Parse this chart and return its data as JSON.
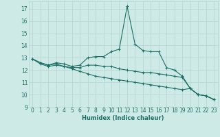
{
  "xlabel": "Humidex (Indice chaleur)",
  "background_color": "#ceeae6",
  "grid_color": "#b8d8d4",
  "line_color": "#1a6e64",
  "xlim": [
    -0.5,
    23.5
  ],
  "ylim": [
    9,
    17.6
  ],
  "yticks": [
    9,
    10,
    11,
    12,
    13,
    14,
    15,
    16,
    17
  ],
  "xticks": [
    0,
    1,
    2,
    3,
    4,
    5,
    6,
    7,
    8,
    9,
    10,
    11,
    12,
    13,
    14,
    15,
    16,
    17,
    18,
    19,
    20,
    21,
    22,
    23
  ],
  "lines": [
    [
      12.9,
      12.6,
      12.4,
      12.6,
      12.5,
      12.3,
      12.4,
      13.0,
      13.1,
      13.1,
      13.5,
      13.7,
      17.2,
      14.1,
      13.6,
      13.5,
      13.5,
      12.2,
      12.0,
      11.5,
      10.5,
      10.0,
      9.9,
      9.6
    ],
    [
      12.9,
      12.6,
      12.4,
      12.5,
      12.3,
      12.2,
      12.2,
      12.4,
      12.4,
      12.3,
      12.3,
      12.1,
      12.0,
      11.9,
      11.8,
      11.8,
      11.7,
      11.6,
      11.5,
      11.4,
      10.5,
      10.0,
      9.9,
      9.6
    ],
    [
      12.9,
      12.5,
      12.3,
      12.4,
      12.3,
      12.1,
      11.9,
      11.7,
      11.5,
      11.4,
      11.3,
      11.2,
      11.1,
      11.0,
      10.9,
      10.8,
      10.7,
      10.6,
      10.5,
      10.4,
      10.5,
      10.0,
      9.9,
      9.6
    ]
  ]
}
